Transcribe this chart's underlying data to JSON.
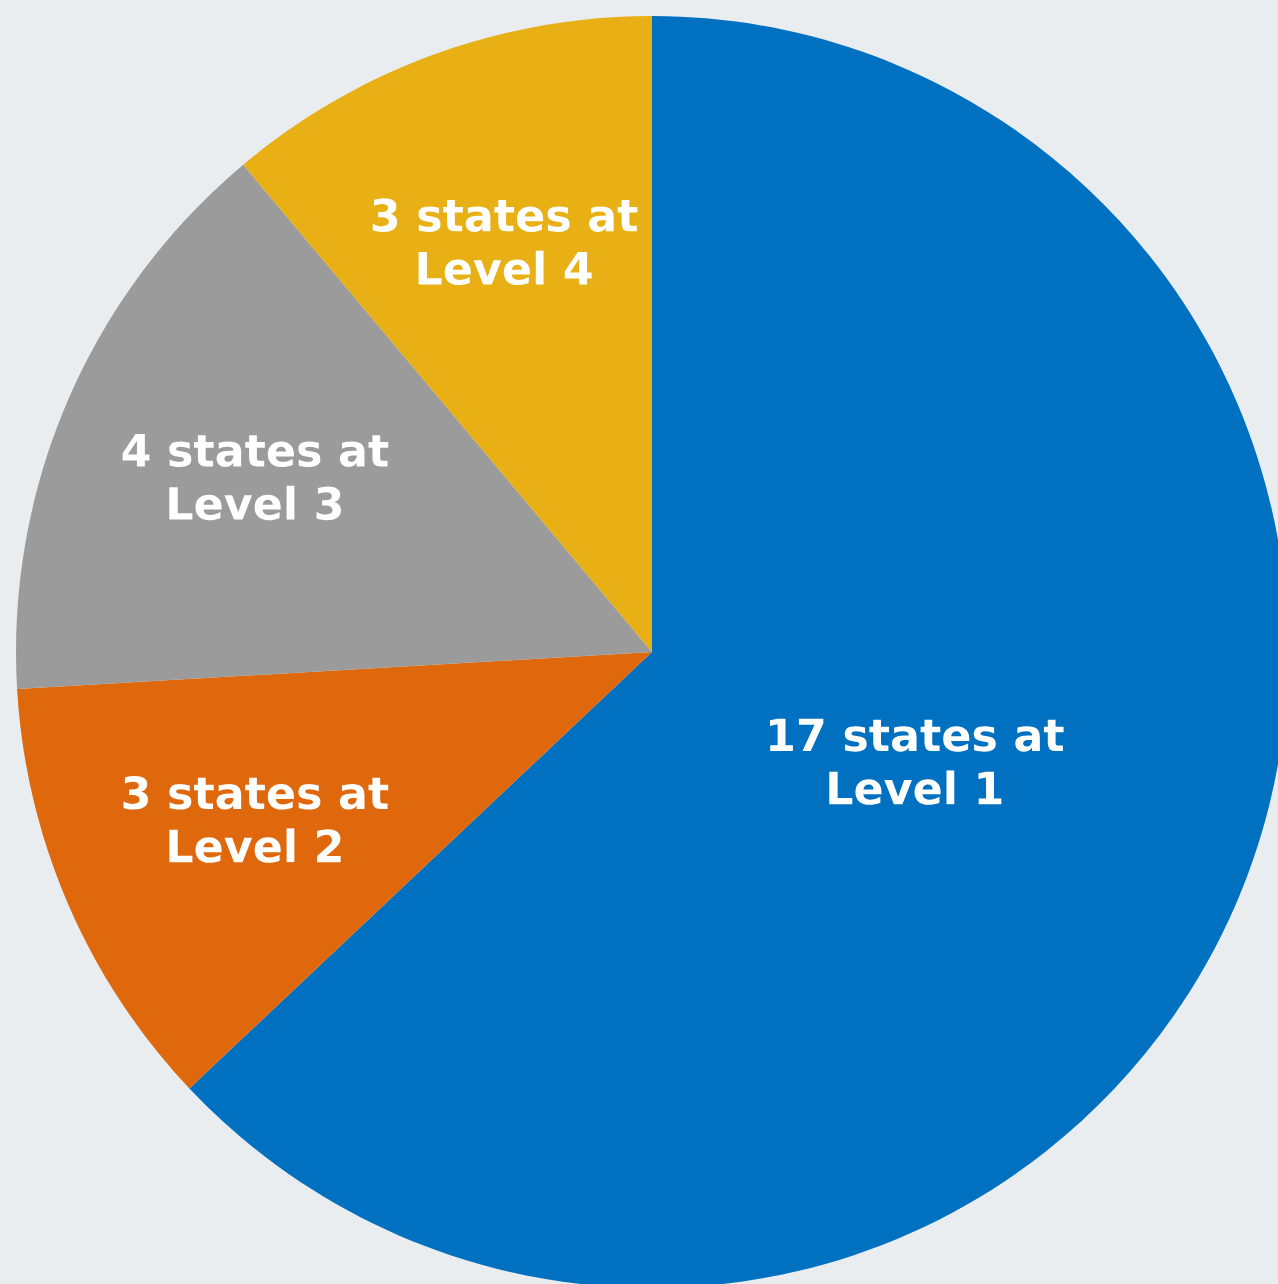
{
  "chart_data": {
    "type": "pie",
    "categories": [
      "17 states at\nLevel 1",
      "3 states at\nLevel 2",
      "4 states at\nLevel 3",
      "3 states at\nLevel 4"
    ],
    "values": [
      17,
      3,
      4,
      3
    ],
    "colors": [
      "#0070c0",
      "#e0680c",
      "#9b9b9b",
      "#e8b014"
    ]
  }
}
